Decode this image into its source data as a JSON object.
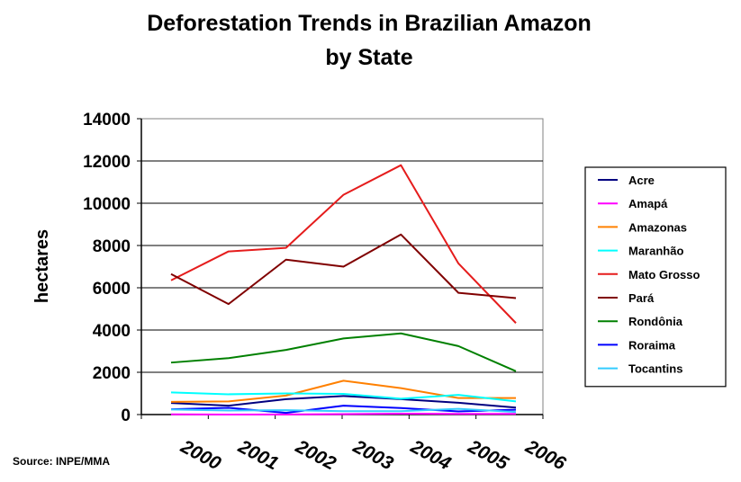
{
  "chart_data": {
    "type": "line",
    "title_lines": [
      "Deforestation Trends in Brazilian Amazon",
      "by State"
    ],
    "ylabel": "hectares",
    "xlabel": "",
    "ylim": [
      0,
      14000
    ],
    "yticks": [
      "0",
      "2000",
      "4000",
      "6000",
      "8000",
      "10000",
      "12000",
      "14000"
    ],
    "categories": [
      "2000",
      "2001",
      "2002",
      "2003",
      "2004",
      "2005",
      "2006"
    ],
    "grid": "horizontal",
    "legend_position": "right",
    "source": "Source: INPE/MMA",
    "series": [
      {
        "name": "Acre",
        "color": "#000080",
        "values": [
          550,
          420,
          730,
          880,
          730,
          560,
          330
        ]
      },
      {
        "name": "Amapá",
        "color": "#ff00ff",
        "values": [
          10,
          0,
          5,
          20,
          40,
          30,
          30
        ]
      },
      {
        "name": "Amazonas",
        "color": "#ff8000",
        "values": [
          600,
          620,
          900,
          1600,
          1250,
          780,
          780
        ]
      },
      {
        "name": "Maranhão",
        "color": "#00ffff",
        "values": [
          1050,
          960,
          1000,
          980,
          750,
          930,
          620
        ]
      },
      {
        "name": "Mato Grosso",
        "color": "#e51c1c",
        "values": [
          6350,
          7720,
          7890,
          10400,
          11800,
          7150,
          4330
        ]
      },
      {
        "name": "Pará",
        "color": "#800000",
        "values": [
          6650,
          5230,
          7330,
          7000,
          8520,
          5760,
          5510
        ]
      },
      {
        "name": "Rondônia",
        "color": "#008000",
        "values": [
          2460,
          2670,
          3060,
          3600,
          3840,
          3240,
          2050
        ]
      },
      {
        "name": "Roraima",
        "color": "#0000ff",
        "values": [
          250,
          320,
          80,
          420,
          310,
          150,
          230
        ]
      },
      {
        "name": "Tocantins",
        "color": "#33ccff",
        "values": [
          240,
          190,
          210,
          160,
          160,
          270,
          120
        ]
      }
    ]
  }
}
